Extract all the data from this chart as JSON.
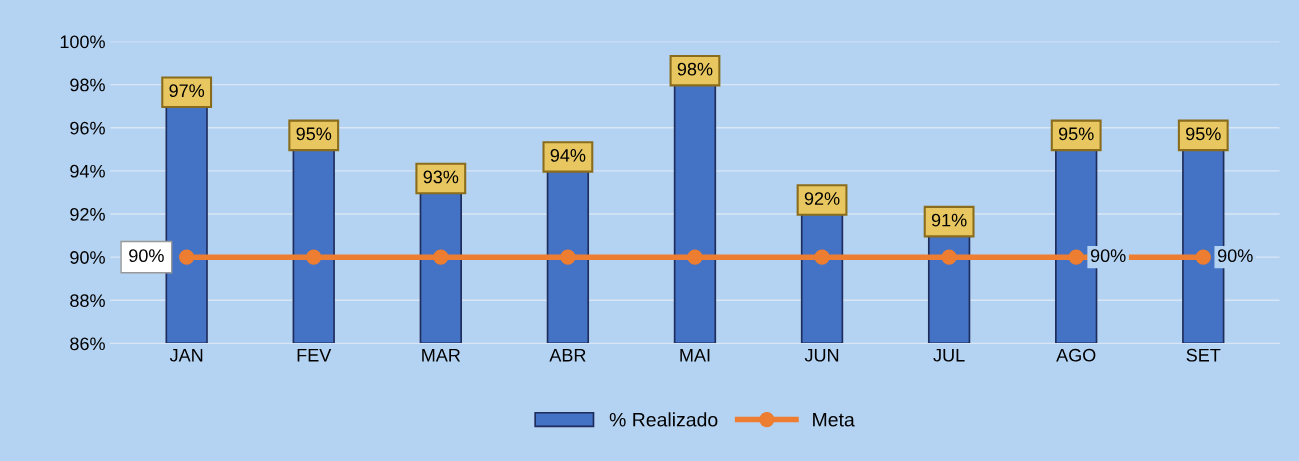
{
  "chart_data": {
    "type": "bar",
    "categories": [
      "JAN",
      "FEV",
      "MAR",
      "ABR",
      "MAI",
      "JUN",
      "JUL",
      "AGO",
      "SET"
    ],
    "series": [
      {
        "name": "% Realizado",
        "color": "#4472c4",
        "values": [
          97,
          95,
          93,
          94,
          98,
          92,
          91,
          95,
          95
        ],
        "value_labels": [
          "97%",
          "95%",
          "93%",
          "94%",
          "98%",
          "92%",
          "91%",
          "95%",
          "95%"
        ]
      },
      {
        "name": "Meta",
        "type": "line",
        "color": "#ed7d31",
        "marker": "circle",
        "line_style": "solid",
        "values": [
          90,
          90,
          90,
          90,
          90,
          90,
          90,
          90,
          90
        ],
        "value_labels": [
          "90%",
          null,
          null,
          null,
          null,
          null,
          null,
          "90%",
          "90%"
        ]
      }
    ],
    "ylim": [
      86,
      100
    ],
    "yticks": [
      {
        "value": 86,
        "label": "86%"
      },
      {
        "value": 88,
        "label": "88%"
      },
      {
        "value": 90,
        "label": "90%"
      },
      {
        "value": 92,
        "label": "92%"
      },
      {
        "value": 94,
        "label": "94%"
      },
      {
        "value": 96,
        "label": "96%"
      },
      {
        "value": 98,
        "label": "98%"
      },
      {
        "value": 100,
        "label": "100%"
      }
    ],
    "grid": "y",
    "legend": "bottom"
  }
}
